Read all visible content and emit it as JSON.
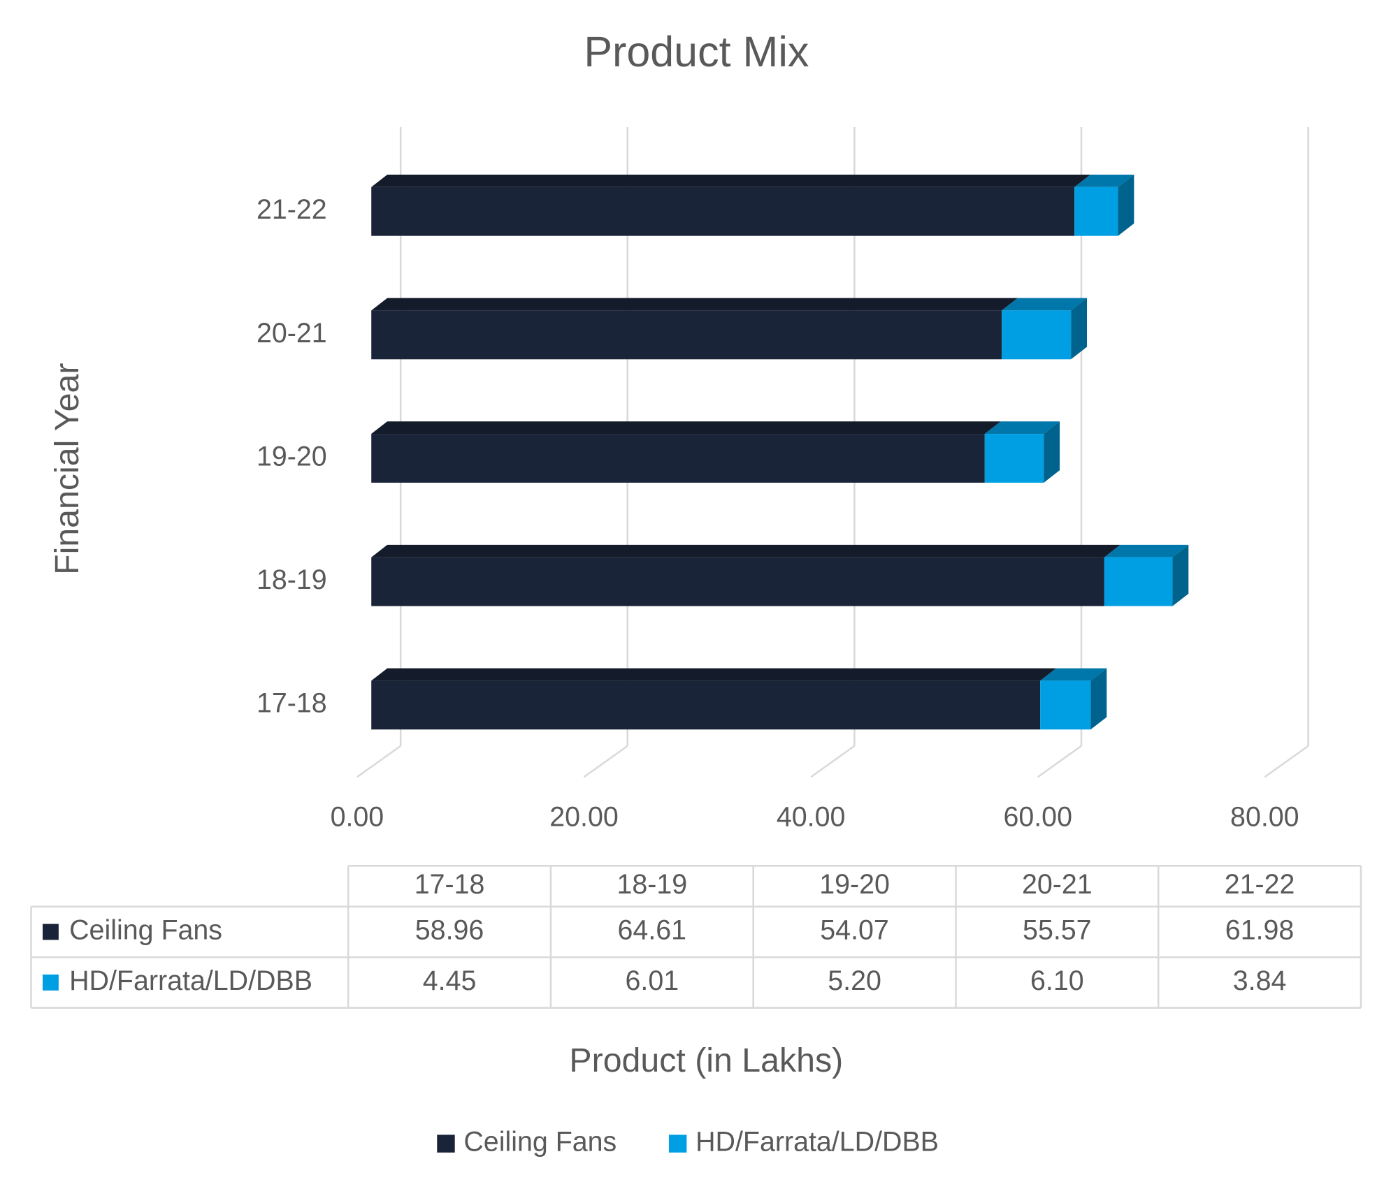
{
  "chart_data": {
    "type": "bar",
    "orientation": "horizontal",
    "stacked": true,
    "three_d": true,
    "title": "Product Mix",
    "x_label": "Product (in Lakhs)",
    "y_label": "Financial Year",
    "categories": [
      "17-18",
      "18-19",
      "19-20",
      "20-21",
      "21-22"
    ],
    "series": [
      {
        "name": "Ceiling Fans",
        "color": "#1a2438",
        "values": [
          58.96,
          64.61,
          54.07,
          55.57,
          61.98
        ]
      },
      {
        "name": "HD/Farrata/LD/DBB",
        "color": "#009fe3",
        "values": [
          4.45,
          6.01,
          5.2,
          6.1,
          3.84
        ],
        "value_labels": [
          "4.45",
          "6.01",
          "5.20",
          "6.10",
          "3.84"
        ]
      }
    ],
    "xlim": [
      0,
      80
    ],
    "xticks": [
      {
        "value": 0,
        "label": "0.00"
      },
      {
        "value": 20,
        "label": "20.00"
      },
      {
        "value": 40,
        "label": "40.00"
      },
      {
        "value": 60,
        "label": "60.00"
      },
      {
        "value": 80,
        "label": "80.00"
      }
    ],
    "grid": true,
    "data_table": true,
    "legend": "bottom"
  }
}
